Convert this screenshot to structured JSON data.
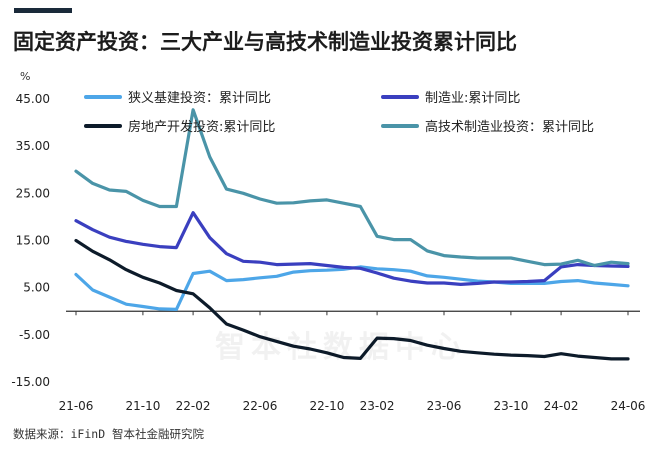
{
  "title": "固定资产投资：三大产业与高技术制造业投资累计同比",
  "source": "数据来源：iFinD 智本社金融研究院",
  "watermark": "智本社数据中心",
  "chart_data": {
    "type": "line",
    "y_unit": "%",
    "ylim": [
      -15,
      45
    ],
    "yticks": [
      "45.00",
      "35.00",
      "25.00",
      "15.00",
      "5.00",
      "-5.00",
      "-15.00"
    ],
    "ytick_values": [
      45,
      35,
      25,
      15,
      5,
      -5,
      -15
    ],
    "x": [
      "21-06",
      "21-07",
      "21-08",
      "21-09",
      "21-10",
      "21-11",
      "21-12",
      "22-02",
      "22-03",
      "22-04",
      "22-05",
      "22-06",
      "22-07",
      "22-08",
      "22-09",
      "22-10",
      "22-11",
      "22-12",
      "23-02",
      "23-03",
      "23-04",
      "23-05",
      "23-06",
      "23-07",
      "23-08",
      "23-09",
      "23-10",
      "23-11",
      "23-12",
      "24-02",
      "24-03",
      "24-04",
      "24-05",
      "24-06"
    ],
    "xticks": [
      "21-06",
      "21-10",
      "22-02",
      "22-06",
      "22-10",
      "23-02",
      "23-06",
      "23-10",
      "24-02",
      "24-06"
    ],
    "grid": false,
    "legend_position": "top",
    "series": [
      {
        "name": "狭义基建投资：累计同比",
        "color": "#4da6e8",
        "values": [
          7.8,
          4.5,
          3.0,
          1.5,
          1.0,
          0.5,
          0.4,
          8.0,
          8.5,
          6.5,
          6.7,
          7.1,
          7.4,
          8.3,
          8.6,
          8.7,
          8.9,
          9.4,
          9.0,
          8.8,
          8.5,
          7.5,
          7.2,
          6.8,
          6.4,
          6.2,
          5.9,
          5.9,
          5.9,
          6.3,
          6.5,
          6.0,
          5.7,
          5.4
        ]
      },
      {
        "name": "制造业:累计同比",
        "color": "#3a3fbf",
        "values": [
          19.2,
          17.3,
          15.7,
          14.8,
          14.2,
          13.7,
          13.5,
          20.9,
          15.6,
          12.2,
          10.6,
          10.4,
          9.9,
          10.0,
          10.1,
          9.7,
          9.3,
          9.1,
          8.1,
          7.0,
          6.4,
          6.0,
          6.0,
          5.7,
          5.9,
          6.2,
          6.2,
          6.3,
          6.5,
          9.4,
          9.9,
          9.7,
          9.6,
          9.5
        ]
      },
      {
        "name": "房地产开发投资:累计同比",
        "color": "#0d1b2a",
        "values": [
          15.0,
          12.7,
          10.9,
          8.8,
          7.2,
          6.0,
          4.4,
          3.7,
          0.7,
          -2.7,
          -4.0,
          -5.4,
          -6.4,
          -7.4,
          -8.0,
          -8.8,
          -9.8,
          -10.0,
          -5.7,
          -5.8,
          -6.2,
          -7.2,
          -7.9,
          -8.5,
          -8.8,
          -9.1,
          -9.3,
          -9.4,
          -9.6,
          -9.0,
          -9.5,
          -9.8,
          -10.1,
          -10.1
        ]
      },
      {
        "name": "高技术制造业投资：累计同比",
        "color": "#4a94a8",
        "values": [
          29.7,
          27.1,
          25.7,
          25.4,
          23.5,
          22.2,
          22.2,
          42.7,
          32.7,
          25.9,
          25.0,
          23.8,
          22.9,
          23.0,
          23.4,
          23.6,
          22.9,
          22.2,
          15.9,
          15.2,
          15.2,
          12.8,
          11.8,
          11.5,
          11.3,
          11.3,
          11.3,
          10.6,
          9.9,
          10.0,
          10.8,
          9.7,
          10.4,
          10.1
        ]
      }
    ]
  }
}
